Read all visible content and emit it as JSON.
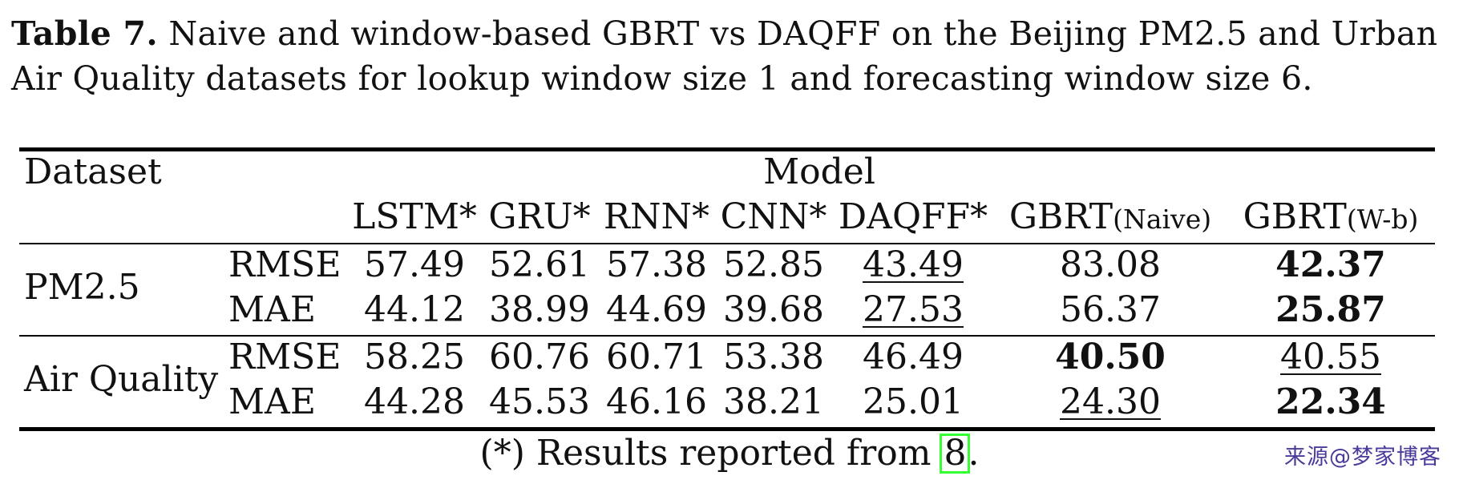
{
  "caption": {
    "label": "Table 7.",
    "text": "Naive and window-based GBRT vs DAQFF on the Beijing PM2.5 and Urban Air Quality datasets for lookup window size 1 and forecasting window size 6."
  },
  "table": {
    "header": {
      "dataset": "Dataset",
      "model": "Model",
      "columns": [
        {
          "name": "LSTM*",
          "suffix": ""
        },
        {
          "name": "GRU*",
          "suffix": ""
        },
        {
          "name": "RNN*",
          "suffix": ""
        },
        {
          "name": "CNN*",
          "suffix": ""
        },
        {
          "name": "DAQFF*",
          "suffix": ""
        },
        {
          "name": "GBRT",
          "suffix": "(Naive)"
        },
        {
          "name": "GBRT",
          "suffix": "(W-b)"
        }
      ]
    },
    "groups": [
      {
        "dataset": "PM2.5",
        "rows": [
          {
            "metric": "RMSE",
            "values": [
              "57.49",
              "52.61",
              "57.38",
              "52.85",
              "43.49",
              "83.08",
              "42.37"
            ],
            "bold": [
              6
            ],
            "underline": [
              4
            ]
          },
          {
            "metric": "MAE",
            "values": [
              "44.12",
              "38.99",
              "44.69",
              "39.68",
              "27.53",
              "56.37",
              "25.87"
            ],
            "bold": [
              6
            ],
            "underline": [
              4
            ]
          }
        ]
      },
      {
        "dataset": "Air Quality",
        "rows": [
          {
            "metric": "RMSE",
            "values": [
              "58.25",
              "60.76",
              "60.71",
              "53.38",
              "46.49",
              "40.50",
              "40.55"
            ],
            "bold": [
              5
            ],
            "underline": [
              6
            ]
          },
          {
            "metric": "MAE",
            "values": [
              "44.28",
              "45.53",
              "46.16",
              "38.21",
              "25.01",
              "24.30",
              "22.34"
            ],
            "bold": [
              6
            ],
            "underline": [
              5
            ]
          }
        ]
      }
    ]
  },
  "footnote": {
    "before": "(*) Results reported from ",
    "cite": "8",
    "after": "."
  },
  "watermark": "来源@梦家博客",
  "colors": {
    "citation_box": "#33ff33",
    "watermark": "#4a3a9a"
  }
}
